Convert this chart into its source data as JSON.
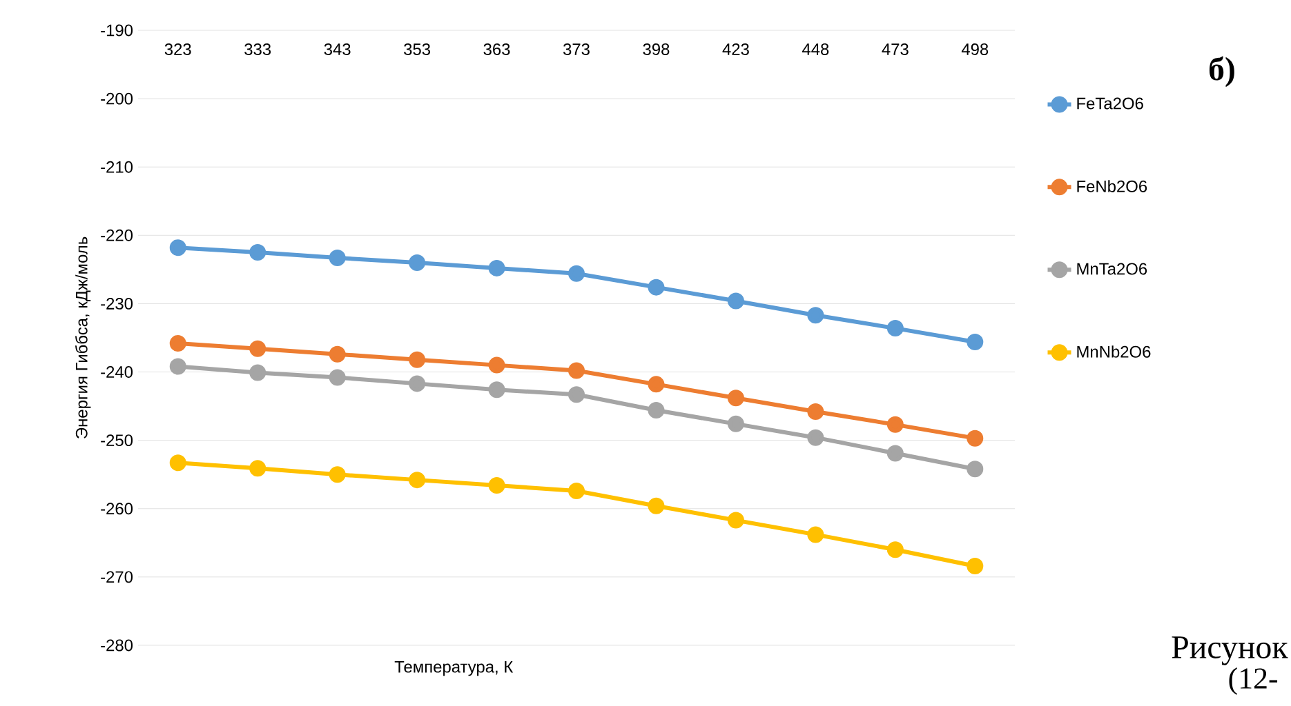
{
  "chart_data": {
    "type": "line",
    "xlabel": "Температура, К",
    "ylabel": "Энергия Гиббса, кДж/моль",
    "categories": [
      "323",
      "333",
      "343",
      "353",
      "363",
      "373",
      "398",
      "423",
      "448",
      "473",
      "498"
    ],
    "series": [
      {
        "name": "FeTa2O6",
        "color": "#5b9bd5",
        "values": [
          -221.8,
          -222.5,
          -223.3,
          -224.0,
          -224.8,
          -225.6,
          -227.6,
          -229.6,
          -231.7,
          -233.6,
          -235.6
        ]
      },
      {
        "name": "FeNb2O6",
        "color": "#ed7d31",
        "values": [
          -235.8,
          -236.6,
          -237.4,
          -238.2,
          -239.0,
          -239.8,
          -241.8,
          -243.8,
          -245.8,
          -247.7,
          -249.7
        ]
      },
      {
        "name": "MnTa2O6",
        "color": "#a5a5a5",
        "values": [
          -239.2,
          -240.1,
          -240.8,
          -241.7,
          -242.6,
          -243.3,
          -245.6,
          -247.6,
          -249.6,
          -251.9,
          -254.2
        ]
      },
      {
        "name": "MnNb2O6",
        "color": "#ffc000",
        "values": [
          -253.3,
          -254.1,
          -255.0,
          -255.8,
          -256.6,
          -257.4,
          -259.6,
          -261.7,
          -263.8,
          -266.0,
          -268.4
        ]
      }
    ],
    "ylim": [
      -280,
      -190
    ],
    "yticks": [
      -280,
      -270,
      -260,
      -250,
      -240,
      -230,
      -220,
      -210,
      -200,
      -190
    ],
    "grid": "y",
    "legend": "right",
    "marker": "circle",
    "line_style": "solid",
    "annotations": [
      "б)",
      "Рисунок",
      "(12-"
    ]
  }
}
